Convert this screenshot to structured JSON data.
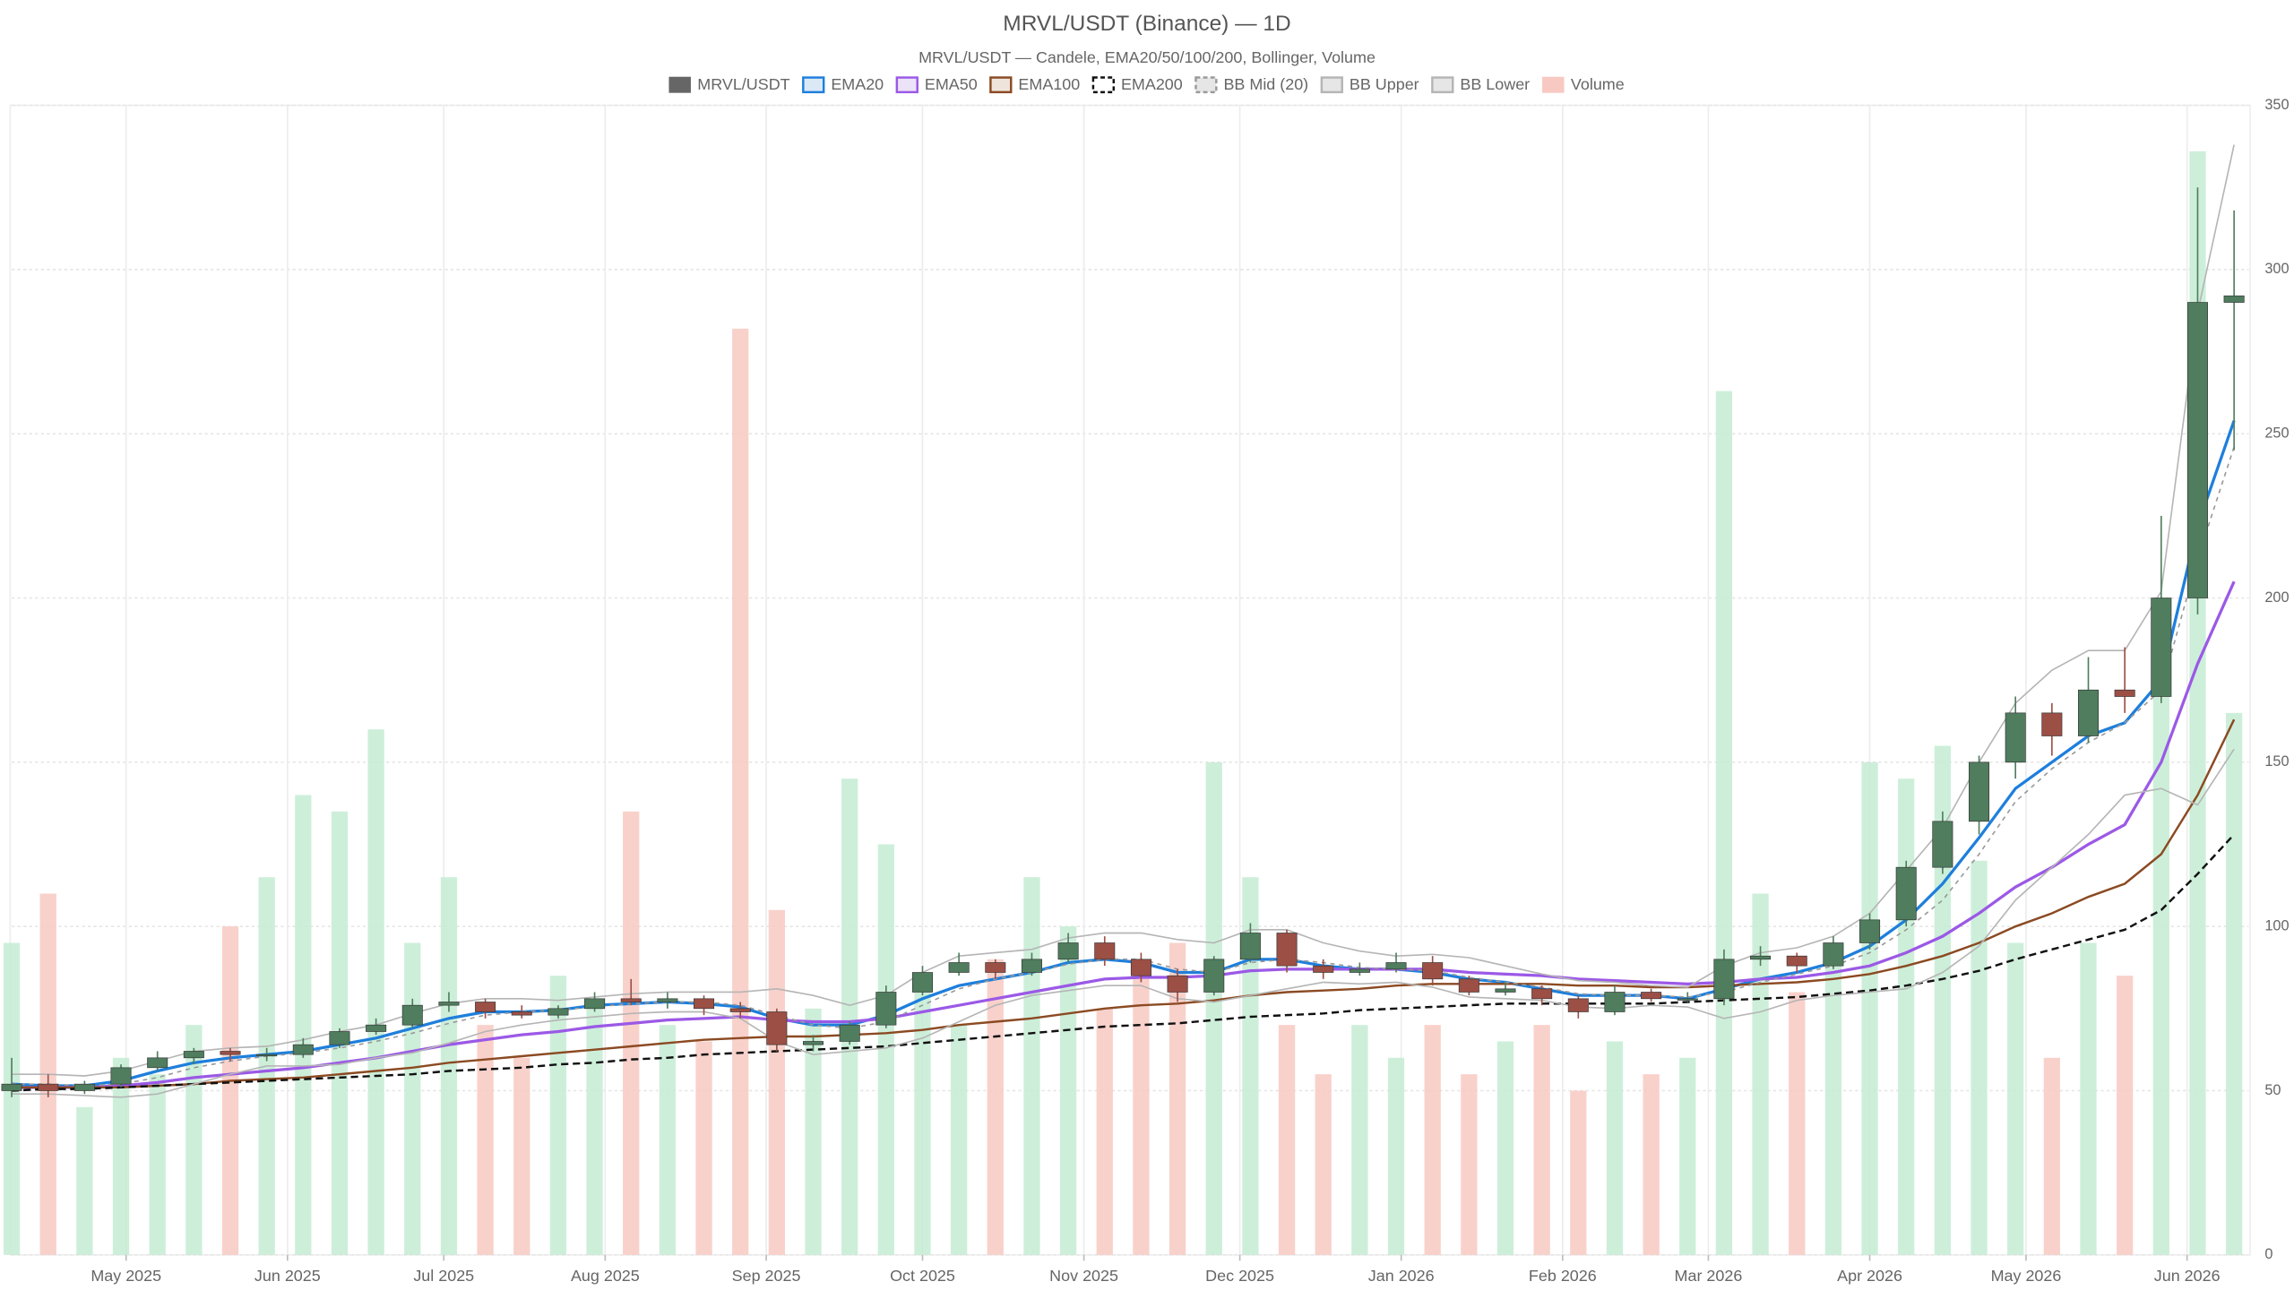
{
  "chart_data": {
    "type": "candlestick",
    "title": "MRVL/USDT (Binance) — 1D",
    "subtitle": "MRVL/USDT — Candele, EMA20/50/100/200, Bollinger, Volume",
    "xlim": [
      0,
      61.4
    ],
    "xticks": [
      {
        "value": 3.14,
        "label": "May 2025"
      },
      {
        "value": 7.57,
        "label": "Jun 2025"
      },
      {
        "value": 11.86,
        "label": "Jul 2025"
      },
      {
        "value": 16.29,
        "label": "Aug 2025"
      },
      {
        "value": 20.71,
        "label": "Sep 2025"
      },
      {
        "value": 25,
        "label": "Oct 2025"
      },
      {
        "value": 29.43,
        "label": "Nov 2025"
      },
      {
        "value": 33.71,
        "label": "Dec 2025"
      },
      {
        "value": 38.14,
        "label": "Jan 2026"
      },
      {
        "value": 42.57,
        "label": "Feb 2026"
      },
      {
        "value": 46.57,
        "label": "Mar 2026"
      },
      {
        "value": 51,
        "label": "Apr 2026"
      },
      {
        "value": 55.29,
        "label": "May 2026"
      },
      {
        "value": 59.71,
        "label": "Jun 2026"
      }
    ],
    "ylim": [
      0,
      350
    ],
    "yticks": [
      0,
      50,
      100,
      150,
      200,
      250,
      300,
      350
    ],
    "y2lim": [
      0,
      350
    ],
    "grid": true,
    "legend": "top",
    "series": [
      {
        "name": "MRVL/USDT",
        "type": "candlestick",
        "color": "#666666",
        "color_up": "#4f7d5e",
        "color_down": "#9c4f45",
        "open": [
          50,
          52,
          50,
          52,
          57,
          60,
          62,
          61,
          61,
          64,
          68,
          70,
          76,
          77,
          74,
          73,
          75,
          78,
          77,
          78,
          75,
          74,
          64,
          65,
          70,
          80,
          86,
          89,
          86,
          90,
          95,
          90,
          85,
          80,
          90,
          98,
          88,
          86,
          87,
          89,
          84,
          80,
          81,
          78,
          74,
          80,
          78,
          78,
          90,
          91,
          88,
          95,
          102,
          118,
          132,
          150,
          165,
          158,
          172,
          170,
          200,
          290
        ],
        "high": [
          60,
          55,
          53,
          58,
          62,
          63,
          63,
          63,
          66,
          69,
          72,
          78,
          80,
          78,
          76,
          76,
          80,
          84,
          80,
          79,
          77,
          75,
          67,
          71,
          82,
          88,
          92,
          90,
          92,
          98,
          97,
          92,
          87,
          91,
          101,
          99,
          90,
          89,
          92,
          91,
          85,
          83,
          82,
          79,
          82,
          81,
          80,
          93,
          94,
          92,
          97,
          104,
          120,
          135,
          152,
          170,
          168,
          182,
          185,
          225,
          325,
          318
        ],
        "low": [
          48,
          48,
          49,
          51,
          56,
          58,
          59,
          59,
          60,
          63,
          67,
          69,
          74,
          72,
          72,
          72,
          74,
          76,
          75,
          73,
          72,
          62,
          62,
          64,
          69,
          79,
          85,
          84,
          85,
          89,
          88,
          83,
          77,
          79,
          89,
          86,
          84,
          85,
          86,
          82,
          79,
          79,
          76,
          72,
          73,
          77,
          77,
          76,
          88,
          86,
          87,
          93,
          100,
          116,
          128,
          145,
          152,
          156,
          165,
          168,
          195,
          245
        ],
        "close": [
          52,
          50,
          52,
          57,
          60,
          62,
          61,
          61,
          64,
          68,
          70,
          76,
          77,
          74,
          73,
          75,
          78,
          77,
          78,
          75,
          74,
          64,
          65,
          70,
          80,
          86,
          89,
          86,
          90,
          95,
          90,
          85,
          80,
          90,
          98,
          88,
          86,
          87,
          89,
          84,
          80,
          81,
          78,
          74,
          80,
          78,
          78,
          90,
          91,
          88,
          95,
          102,
          118,
          132,
          150,
          165,
          158,
          172,
          170,
          200,
          290,
          292
        ]
      },
      {
        "name": "EMA20",
        "type": "line",
        "color": "#1e7fdc",
        "fill": "#dbe9f7",
        "width": 2,
        "values": [
          52,
          51.5,
          51.5,
          53,
          56,
          58.5,
          60,
          61,
          62,
          64,
          66,
          69,
          72,
          74,
          74,
          74.5,
          76,
          76.5,
          77,
          76.5,
          75.5,
          72,
          70,
          70,
          73,
          78,
          82,
          84,
          86,
          89,
          90,
          89,
          86,
          86,
          90,
          90,
          88,
          87,
          87,
          86,
          84,
          83,
          81,
          79,
          79,
          79,
          78,
          81,
          84,
          86,
          89,
          94,
          102,
          113,
          127,
          142,
          150,
          158,
          162,
          175,
          222,
          254
        ]
      },
      {
        "name": "EMA50",
        "type": "line",
        "color": "#9b59e6",
        "fill": "#ece3f8",
        "width": 2,
        "values": [
          51,
          51,
          51,
          51.5,
          52.5,
          54,
          55,
          56,
          57,
          58.5,
          60,
          62,
          64,
          65.5,
          67,
          68,
          69.5,
          70.5,
          71.5,
          72,
          72.5,
          71.5,
          71,
          71,
          72,
          74,
          76,
          78,
          80,
          82,
          84,
          84.5,
          84.5,
          85,
          86.5,
          87,
          87,
          87,
          87,
          87,
          86,
          85.5,
          85,
          84,
          83.5,
          83,
          82.5,
          83,
          84,
          84.5,
          86,
          88,
          92,
          97,
          104,
          112,
          118,
          125,
          131,
          150,
          180,
          205
        ]
      },
      {
        "name": "EMA100",
        "type": "line",
        "color": "#8b4a22",
        "fill": "#efe4dc",
        "width": 1.5,
        "values": [
          51,
          51,
          51,
          51,
          51.5,
          52,
          53,
          53.5,
          54,
          55,
          56,
          57,
          58.5,
          59.5,
          60.5,
          61.5,
          62.5,
          63.5,
          64.5,
          65.5,
          66,
          66.5,
          66.5,
          67,
          67.5,
          68.5,
          70,
          71,
          72,
          73.5,
          75,
          76,
          76.5,
          77.5,
          79,
          80,
          80.5,
          81,
          82,
          82.5,
          82.5,
          82.5,
          82.5,
          82,
          82,
          81.5,
          81.5,
          82,
          82.5,
          83,
          84,
          85.5,
          88,
          91,
          95,
          100,
          104,
          109,
          113,
          122,
          140,
          163
        ]
      },
      {
        "name": "EMA200",
        "type": "line",
        "color": "#111111",
        "fill": "#ffffff",
        "dash": "5 3",
        "width": 1.5,
        "values": [
          50,
          50.5,
          50.5,
          51,
          51.5,
          52,
          52.5,
          53,
          53.5,
          54,
          54.5,
          55,
          56,
          56.5,
          57,
          58,
          58.5,
          59.5,
          60,
          61,
          61.5,
          62,
          62.5,
          63,
          63.5,
          64.5,
          65.5,
          66.5,
          67.5,
          68.5,
          69.5,
          70,
          70.5,
          71.5,
          72.5,
          73,
          73.5,
          74.5,
          75,
          75.5,
          76,
          76.5,
          76.5,
          76.5,
          76.5,
          76.5,
          77,
          77.5,
          78,
          78.5,
          79.5,
          80.5,
          82,
          84,
          86.5,
          90,
          93,
          96,
          99,
          105,
          116,
          128
        ]
      },
      {
        "name": "BB Mid (20)",
        "type": "line",
        "color": "#9a9a9a",
        "fill": "#e6e6e6",
        "dash": "3 3",
        "width": 1,
        "values": [
          52,
          52,
          51.5,
          52,
          54,
          57,
          59,
          60.5,
          61.5,
          63,
          65,
          67.5,
          70.5,
          73,
          74,
          74.5,
          75.5,
          76.5,
          77,
          77,
          76,
          73,
          70,
          69,
          71,
          76,
          81,
          84,
          86,
          88.5,
          90,
          90,
          87,
          86,
          89,
          90,
          89,
          87.5,
          87,
          86.5,
          84.5,
          83,
          81.5,
          79.5,
          79,
          79,
          78.5,
          80,
          83,
          85.5,
          88,
          92,
          99,
          108,
          122,
          138,
          148,
          156,
          162,
          172,
          212,
          246
        ]
      },
      {
        "name": "BB Upper",
        "type": "line",
        "color": "#b5b5b5",
        "fill": "#e6e6e6",
        "width": 1,
        "values": [
          55,
          55,
          54.5,
          56,
          59,
          62,
          63,
          63.5,
          65.5,
          68,
          70,
          73.5,
          76.5,
          78,
          78,
          77.5,
          78.5,
          79.5,
          80,
          80,
          80,
          81,
          79,
          76,
          79,
          86,
          91,
          92,
          93,
          96.5,
          98,
          98,
          96,
          95,
          99,
          99,
          95,
          92.5,
          91,
          91.5,
          90.5,
          88,
          85.5,
          83.5,
          83,
          82,
          81.5,
          88,
          92,
          93.5,
          97,
          104,
          117,
          130,
          150,
          168,
          178,
          184,
          184,
          202,
          287,
          338
        ]
      },
      {
        "name": "BB Lower",
        "type": "line",
        "color": "#b5b5b5",
        "fill": "#e6e6e6",
        "width": 1,
        "values": [
          49,
          49,
          48.5,
          48,
          49,
          52,
          55,
          57.5,
          57.5,
          58,
          60,
          61.5,
          64.5,
          68,
          70,
          71.5,
          72.5,
          73.5,
          74,
          74,
          72,
          65,
          61,
          62,
          63,
          66,
          71,
          76,
          79,
          80.5,
          82,
          82,
          78,
          77,
          79,
          81,
          83,
          82.5,
          83,
          81.5,
          78.5,
          78,
          77.5,
          75.5,
          75,
          76,
          75.5,
          72,
          74,
          77.5,
          79,
          80,
          81,
          86,
          94,
          108,
          118,
          128,
          140,
          142,
          137,
          154
        ]
      },
      {
        "name": "Volume",
        "type": "bar",
        "axis": "y2",
        "color": "#f8c9c2",
        "color_up": "#c4ecd3",
        "color_down": "#f8c9c2",
        "values": [
          95,
          110,
          45,
          60,
          55,
          70,
          100,
          115,
          140,
          135,
          160,
          95,
          115,
          70,
          60,
          85,
          75,
          135,
          70,
          65,
          282,
          105,
          75,
          145,
          125,
          80,
          70,
          90,
          115,
          100,
          75,
          85,
          95,
          150,
          115,
          70,
          55,
          70,
          60,
          70,
          55,
          65,
          70,
          50,
          65,
          55,
          60,
          263,
          110,
          80,
          90,
          150,
          145,
          155,
          120,
          95,
          60,
          95,
          85,
          175,
          336,
          165
        ]
      }
    ]
  }
}
